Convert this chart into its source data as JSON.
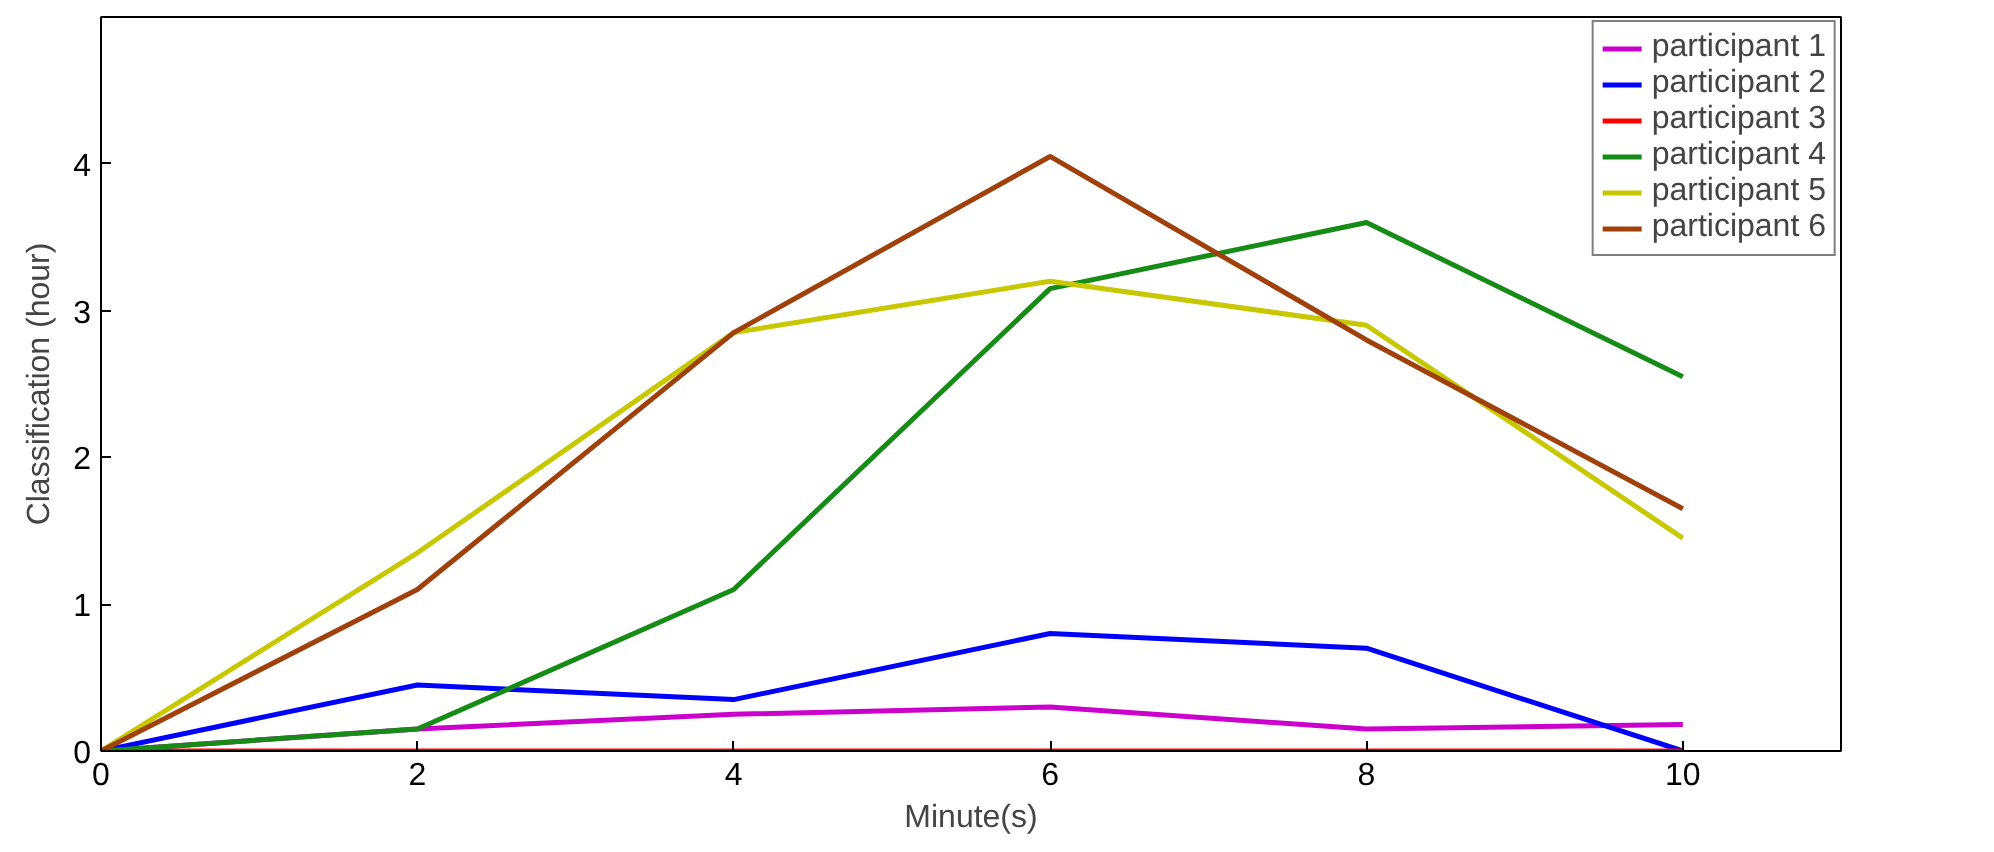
{
  "chart_data": {
    "type": "line",
    "xlabel": "Minute(s)",
    "ylabel": "Classification (hour)",
    "x": [
      0,
      2,
      4,
      6,
      8,
      10
    ],
    "series": [
      {
        "name": "participant 1",
        "color": "#cc00cc",
        "values": [
          0,
          0.15,
          0.25,
          0.3,
          0.15,
          0.18
        ]
      },
      {
        "name": "participant 2",
        "color": "#0000ff",
        "values": [
          0,
          0.45,
          0.35,
          0.8,
          0.7,
          0
        ]
      },
      {
        "name": "participant 3",
        "color": "#ff0000",
        "values": [
          0,
          0,
          0,
          0,
          0,
          0
        ]
      },
      {
        "name": "participant 4",
        "color": "#168c16",
        "values": [
          0,
          0.15,
          1.1,
          3.15,
          3.6,
          2.55
        ]
      },
      {
        "name": "participant 5",
        "color": "#c8c800",
        "values": [
          0,
          1.35,
          2.85,
          3.2,
          2.9,
          1.45
        ]
      },
      {
        "name": "participant 6",
        "color": "#a0400a",
        "values": [
          0,
          1.1,
          2.85,
          4.05,
          2.8,
          1.65
        ]
      }
    ],
    "xlim": [
      0,
      11
    ],
    "ylim": [
      0,
      5
    ],
    "xticks": [
      0,
      2,
      4,
      6,
      8,
      10
    ],
    "yticks": [
      0,
      1,
      2,
      3,
      4
    ],
    "grid": false,
    "legend": "top right",
    "marker": "none",
    "line_style": "solid"
  }
}
